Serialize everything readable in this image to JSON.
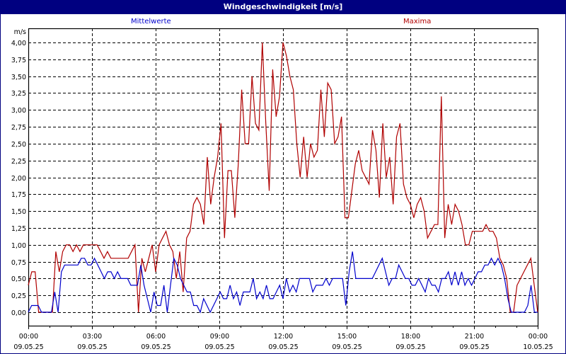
{
  "window": {
    "title": "Windgeschwindigkeit [m/s]"
  },
  "chart_data": {
    "type": "line",
    "title": "Windgeschwindigkeit [m/s]",
    "ylabel": "m/s",
    "xlabel": "",
    "ylim": [
      0,
      4
    ],
    "grid": true,
    "legend_position": "top",
    "y_ticks": [
      "0,00",
      "0,25",
      "0,50",
      "0,75",
      "1,00",
      "1,25",
      "1,50",
      "1,75",
      "2,00",
      "2,25",
      "2,50",
      "2,75",
      "3,00",
      "3,25",
      "3,50",
      "3,75",
      "4,00"
    ],
    "x_ticks": [
      {
        "time": "00:00",
        "date": "09.05.25"
      },
      {
        "time": "03:00",
        "date": "09.05.25"
      },
      {
        "time": "06:00",
        "date": "09.05.25"
      },
      {
        "time": "09:00",
        "date": "09.05.25"
      },
      {
        "time": "12:00",
        "date": "09.05.25"
      },
      {
        "time": "15:00",
        "date": "09.05.25"
      },
      {
        "time": "18:00",
        "date": "09.05.25"
      },
      {
        "time": "21:00",
        "date": "09.05.25"
      },
      {
        "time": "00:00",
        "date": "10.05.25"
      }
    ],
    "x_interval_minutes": 10,
    "series": [
      {
        "name": "Mittelwerte",
        "color": "#0000cc",
        "values": [
          0.0,
          0.1,
          0.1,
          0.1,
          0.0,
          0.0,
          0.0,
          0.0,
          0.3,
          0.0,
          0.6,
          0.7,
          0.7,
          0.7,
          0.7,
          0.7,
          0.8,
          0.8,
          0.7,
          0.7,
          0.8,
          0.7,
          0.6,
          0.5,
          0.6,
          0.6,
          0.5,
          0.6,
          0.5,
          0.5,
          0.5,
          0.4,
          0.4,
          0.4,
          0.7,
          0.4,
          0.2,
          0.0,
          0.3,
          0.1,
          0.1,
          0.4,
          0.0,
          0.4,
          0.8,
          0.7,
          0.5,
          0.4,
          0.3,
          0.3,
          0.1,
          0.1,
          0.0,
          0.2,
          0.1,
          0.0,
          0.1,
          0.2,
          0.3,
          0.2,
          0.2,
          0.4,
          0.2,
          0.3,
          0.1,
          0.3,
          0.3,
          0.3,
          0.5,
          0.2,
          0.3,
          0.2,
          0.4,
          0.2,
          0.2,
          0.3,
          0.4,
          0.2,
          0.5,
          0.3,
          0.4,
          0.3,
          0.5,
          0.5,
          0.5,
          0.5,
          0.3,
          0.4,
          0.4,
          0.4,
          0.5,
          0.4,
          0.5,
          0.5,
          0.5,
          0.5,
          0.1,
          0.6,
          0.9,
          0.5,
          0.5,
          0.5,
          0.5,
          0.5,
          0.5,
          0.6,
          0.7,
          0.8,
          0.6,
          0.4,
          0.5,
          0.5,
          0.7,
          0.6,
          0.5,
          0.5,
          0.4,
          0.4,
          0.5,
          0.4,
          0.3,
          0.5,
          0.4,
          0.4,
          0.3,
          0.5,
          0.5,
          0.6,
          0.4,
          0.6,
          0.4,
          0.6,
          0.4,
          0.5,
          0.4,
          0.5,
          0.6,
          0.6,
          0.7,
          0.7,
          0.8,
          0.7,
          0.8,
          0.7,
          0.5,
          0.2,
          0.0,
          0.0,
          0.0,
          0.0,
          0.0,
          0.1,
          0.4,
          0.0,
          0.0
        ]
      },
      {
        "name": "Maxima",
        "color": "#b00000",
        "values": [
          0.4,
          0.6,
          0.6,
          0.0,
          0.0,
          0.0,
          0.0,
          0.0,
          0.9,
          0.6,
          0.9,
          1.0,
          1.0,
          0.9,
          1.0,
          0.9,
          1.0,
          1.0,
          1.0,
          1.0,
          1.0,
          0.9,
          0.8,
          0.9,
          0.8,
          0.8,
          0.8,
          0.8,
          0.8,
          0.8,
          0.9,
          1.0,
          0.0,
          0.8,
          0.6,
          0.8,
          1.0,
          0.6,
          1.0,
          1.1,
          1.2,
          1.0,
          0.9,
          0.5,
          0.9,
          0.3,
          1.1,
          1.2,
          1.6,
          1.7,
          1.6,
          1.3,
          2.3,
          1.6,
          2.0,
          2.3,
          2.8,
          1.1,
          2.1,
          2.1,
          1.4,
          2.2,
          3.3,
          2.5,
          2.5,
          3.5,
          2.8,
          2.7,
          4.0,
          2.8,
          1.8,
          3.6,
          2.9,
          3.2,
          4.0,
          3.8,
          3.5,
          3.3,
          2.5,
          2.0,
          2.6,
          2.0,
          2.5,
          2.3,
          2.4,
          3.3,
          2.6,
          3.4,
          3.3,
          2.5,
          2.6,
          2.9,
          1.4,
          1.4,
          1.8,
          2.2,
          2.4,
          2.1,
          2.0,
          1.9,
          2.7,
          2.4,
          1.7,
          2.8,
          2.0,
          2.3,
          1.6,
          2.6,
          2.8,
          1.9,
          1.7,
          1.6,
          1.4,
          1.6,
          1.7,
          1.5,
          1.1,
          1.2,
          1.3,
          1.3,
          3.2,
          1.1,
          1.6,
          1.3,
          1.6,
          1.5,
          1.3,
          1.0,
          1.0,
          1.2,
          1.2,
          1.2,
          1.2,
          1.3,
          1.2,
          1.2,
          1.1,
          0.8,
          0.7,
          0.5,
          0.0,
          0.0,
          0.4,
          0.5,
          0.6,
          0.7,
          0.8,
          0.4,
          0.0
        ]
      }
    ]
  },
  "legend": {
    "mean_label": "Mittelwerte",
    "max_label": "Maxima"
  }
}
